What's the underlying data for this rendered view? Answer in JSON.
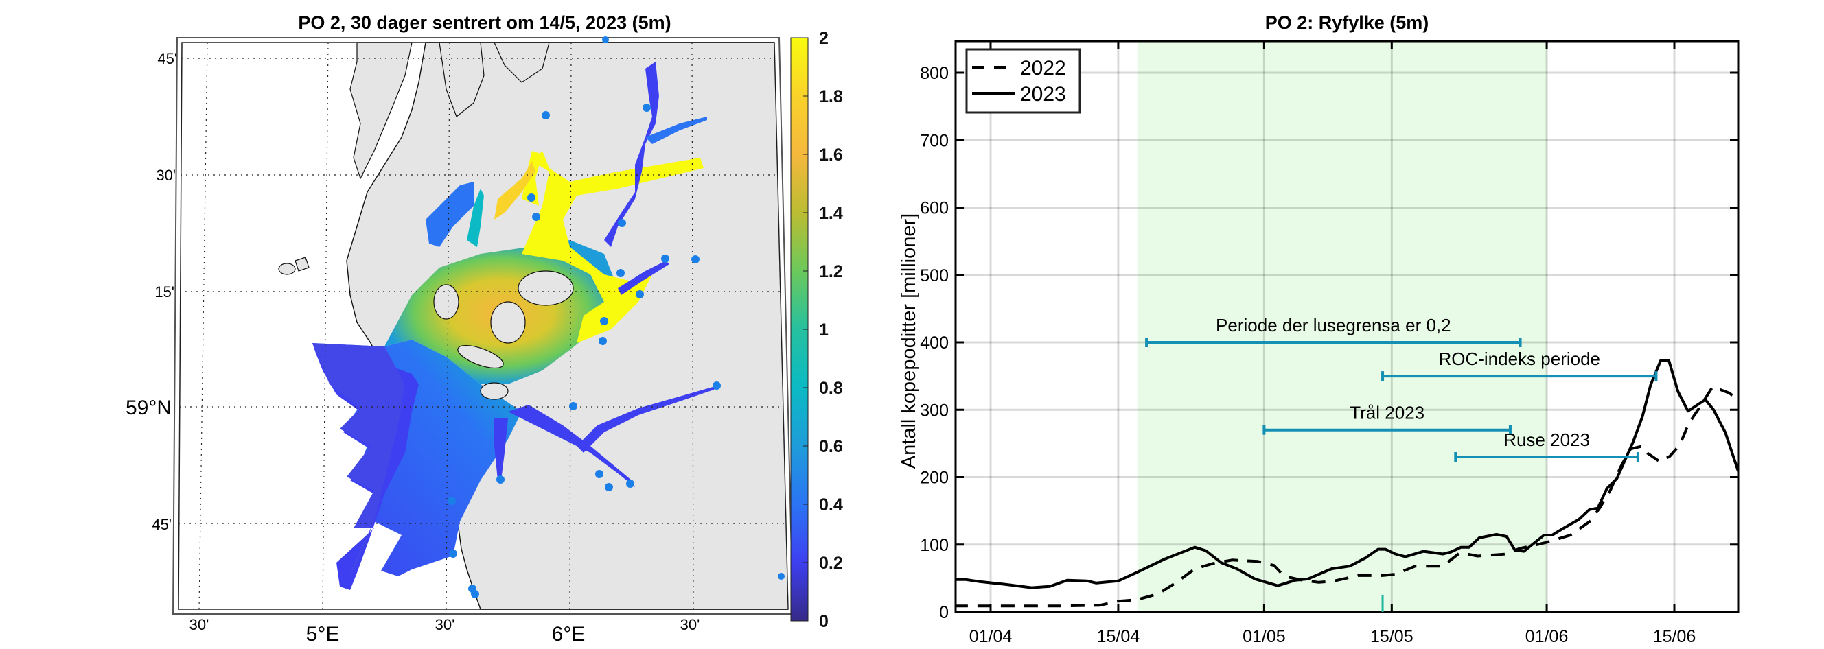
{
  "map_panel": {
    "title": "PO 2, 30 dager sentrert om 14/5, 2023 (5m)",
    "lat_labels": [
      "45'",
      "30'",
      "15'",
      "59°N",
      "45'"
    ],
    "lon_labels": [
      "30'",
      "5°E",
      "30'",
      "6°E",
      "30'"
    ],
    "colorbar": {
      "min": 0,
      "max": 2,
      "ticks": [
        "0",
        "0.2",
        "0.4",
        "0.6",
        "0.8",
        "1",
        "1.2",
        "1.4",
        "1.6",
        "1.8",
        "2"
      ],
      "colormap": "parula",
      "colors": [
        "#352a87",
        "#3e3ff0",
        "#2b74f4",
        "#1e9cd9",
        "#0bbac4",
        "#26c09f",
        "#6cc95b",
        "#bbbc32",
        "#f5b83d",
        "#f9d22a",
        "#f9fb0e"
      ]
    },
    "land_color": "#e5e5e5",
    "station_color": "#1a7fe6"
  },
  "chart_data": {
    "type": "line",
    "title": "PO 2: Ryfylke (5m)",
    "xlabel": "",
    "ylabel": "Antall kopepoditter [millioner]",
    "x_unit": "days after 01/04/2023",
    "xlim": [
      -3.8,
      82
    ],
    "ylim": [
      0,
      850
    ],
    "yticks": [
      0,
      100,
      200,
      300,
      400,
      500,
      600,
      700,
      800
    ],
    "xticks": [
      {
        "day": 0,
        "label": "01/04"
      },
      {
        "day": 14,
        "label": "15/04"
      },
      {
        "day": 30,
        "label": "01/05"
      },
      {
        "day": 44,
        "label": "15/05"
      },
      {
        "day": 61,
        "label": "01/06"
      },
      {
        "day": 75,
        "label": "15/06"
      }
    ],
    "grid": true,
    "legend_position": "top-left",
    "shaded_period": {
      "start_day": 16.1,
      "end_day": 61,
      "color": "#e8fbe6"
    },
    "series": [
      {
        "name": "2022",
        "style": "dashed",
        "x": [
          -4,
          0,
          4,
          8,
          12,
          14,
          16,
          18.4,
          20.4,
          22.4,
          24.4,
          26.5,
          29.3,
          31.1,
          32.2,
          34.2,
          36,
          37.7,
          40.3,
          43,
          44.4,
          46.6,
          49.6,
          51.5,
          53.4,
          56.6,
          58,
          60.9,
          63.6,
          65.7,
          66.8,
          68,
          69.1,
          70.2,
          71.5,
          72,
          73.4,
          74.5,
          75.6,
          76.6,
          77.6,
          79.2,
          81,
          82
        ],
        "values": [
          9,
          9,
          9,
          9,
          10,
          16,
          18,
          27,
          44,
          64,
          72,
          77,
          75,
          69,
          53,
          47,
          44,
          46,
          54,
          54,
          56,
          68,
          68,
          88,
          83,
          86,
          94,
          103,
          114,
          134,
          154,
          181,
          215,
          242,
          246,
          236,
          223,
          231,
          248,
          280,
          300,
          334,
          325,
          315
        ]
      },
      {
        "name": "2023",
        "style": "solid",
        "x": [
          -4.1,
          -2.7,
          -1.2,
          1.6,
          4.5,
          6.5,
          8.4,
          10.6,
          11.6,
          14,
          16.1,
          19,
          22.4,
          23.6,
          25.3,
          27,
          29,
          31.5,
          33.4,
          34.8,
          37.4,
          39.4,
          41.1,
          42.5,
          43.3,
          44.4,
          45.5,
          47.5,
          49.6,
          50.5,
          51.6,
          52.5,
          53.6,
          55.5,
          56.6,
          57.5,
          58.5,
          60.7,
          61.6,
          62.8,
          64.5,
          65.7,
          66.6,
          67.6,
          68.7,
          70.5,
          71.5,
          72.4,
          73.5,
          74.4,
          75.4,
          76.5,
          78.4,
          79.3,
          80.6,
          82
        ],
        "values": [
          48,
          48,
          45,
          41,
          36,
          38,
          47,
          46,
          43,
          46,
          59,
          78,
          96,
          91,
          73,
          64,
          49,
          39,
          47,
          49,
          64,
          68,
          80,
          93,
          93,
          86,
          82,
          90,
          86,
          89,
          96,
          96,
          110,
          115,
          112,
          92,
          90,
          114,
          114,
          124,
          137,
          152,
          154,
          183,
          198,
          253,
          290,
          337,
          373,
          373,
          327,
          298,
          315,
          300,
          266,
          209
        ]
      }
    ],
    "annotations": [
      {
        "label": "Periode der lusegrensa er 0,2",
        "start_day": 17.1,
        "end_day": 58.1,
        "y": 400
      },
      {
        "label": "ROC-indeks periode",
        "start_day": 43,
        "end_day": 73,
        "y": 350
      },
      {
        "label": "Trål 2023",
        "start_day": 30,
        "end_day": 57,
        "y": 270
      },
      {
        "label": "Ruse 2023",
        "start_day": 51,
        "end_day": 71,
        "y": 230
      }
    ],
    "annotation_color": "#1490b5",
    "marker": {
      "day": 43,
      "height": 25,
      "color": "#1fb5a0"
    }
  }
}
